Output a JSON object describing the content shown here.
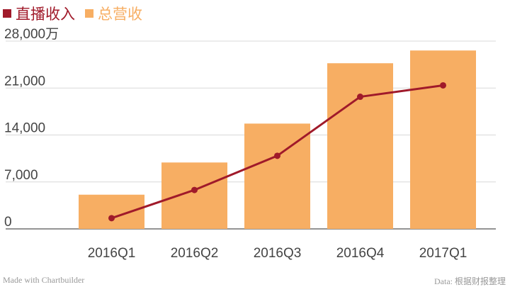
{
  "legend": [
    {
      "label": "直播收入",
      "color": "#a01a2a"
    },
    {
      "label": "总营收",
      "color": "#f7ae63"
    }
  ],
  "chart_data": {
    "type": "bar",
    "categories": [
      "2016Q1",
      "2016Q2",
      "2016Q3",
      "2016Q4",
      "2017Q1"
    ],
    "series": [
      {
        "name": "总营收",
        "type": "bar",
        "color": "#f7ae63",
        "values": [
          5100,
          9900,
          15700,
          24700,
          26600
        ]
      },
      {
        "name": "直播收入",
        "type": "line",
        "color": "#a01a2a",
        "values": [
          1600,
          5800,
          10900,
          19700,
          21400
        ]
      }
    ],
    "ylim": [
      0,
      28000
    ],
    "yticks": [
      0,
      7000,
      14000,
      21000,
      28000
    ],
    "ytick_labels": [
      "0",
      "7,000",
      "14,000",
      "21,000",
      "28,000万"
    ],
    "grid": true
  },
  "footer": {
    "credit": "Made with Chartbuilder",
    "source": "Data: 根据财报整理"
  }
}
